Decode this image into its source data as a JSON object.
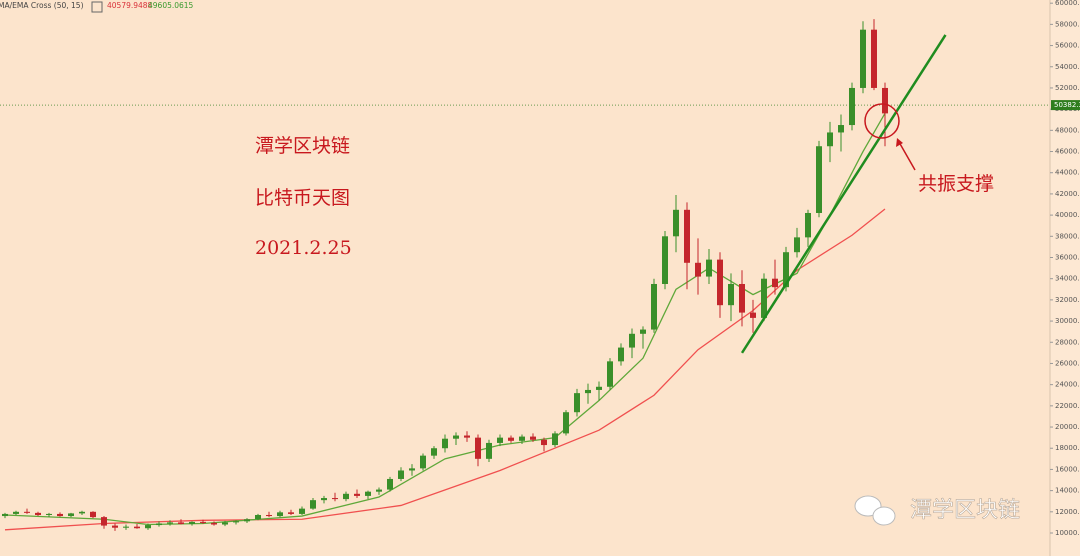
{
  "chart_data": {
    "type": "candlestick",
    "indicator": "MA/EMA Cross (50, 15)",
    "ylim": [
      7830,
      60300
    ],
    "yticks": [
      {
        "value": 10000,
        "label": "10000.00"
      },
      {
        "value": 12000,
        "label": "12000.00"
      },
      {
        "value": 14000,
        "label": "14000.00"
      },
      {
        "value": 16000,
        "label": "16000.00"
      },
      {
        "value": 18000,
        "label": "18000.00"
      },
      {
        "value": 20000,
        "label": "20000.00"
      },
      {
        "value": 22000,
        "label": "22000.00"
      },
      {
        "value": 24000,
        "label": "24000.00"
      },
      {
        "value": 26000,
        "label": "26000.00"
      },
      {
        "value": 28000,
        "label": "28000.00"
      },
      {
        "value": 30000,
        "label": "30000.00"
      },
      {
        "value": 32000,
        "label": "32000.00"
      },
      {
        "value": 34000,
        "label": "34000.00"
      },
      {
        "value": 36000,
        "label": "36000.00"
      },
      {
        "value": 38000,
        "label": "38000.00"
      },
      {
        "value": 40000,
        "label": "40000.00"
      },
      {
        "value": 42000,
        "label": "42000.00"
      },
      {
        "value": 44000,
        "label": "44000.00"
      },
      {
        "value": 46000,
        "label": "46000.00"
      },
      {
        "value": 48000,
        "label": "48000.00"
      },
      {
        "value": 50000,
        "label": "50000.00"
      },
      {
        "value": 52000,
        "label": "52000.00"
      },
      {
        "value": 54000,
        "label": "54000.00"
      },
      {
        "value": 56000,
        "label": "56000.00"
      },
      {
        "value": 58000,
        "label": "58000.00"
      },
      {
        "value": 60000,
        "label": "60000.00"
      }
    ],
    "up_color": "#3a8f2a",
    "down_color": "#c4262c",
    "candles": {
      "open": [
        11600,
        11800,
        12000,
        11900,
        11700,
        11800,
        11600,
        11850,
        12000,
        11500,
        10700,
        10500,
        10600,
        10450,
        10750,
        10900,
        11000,
        10850,
        11050,
        10950,
        10800,
        11000,
        11100,
        11300,
        11700,
        11600,
        11950,
        11800,
        12300,
        13100,
        13300,
        13200,
        13700,
        13500,
        13900,
        14100,
        15100,
        15900,
        16100,
        17300,
        18000,
        18900,
        19200,
        19000,
        17000,
        18500,
        19000,
        18700,
        19100,
        18800,
        18300,
        19400,
        21400,
        23200,
        23500,
        23800,
        26200,
        27500,
        28800,
        29200,
        33500,
        38000,
        40500,
        35500,
        34200,
        35800,
        31500,
        33500,
        30800,
        30300,
        34000,
        33200,
        36500,
        37900,
        40200,
        46500,
        47800,
        48500,
        52000,
        57500,
        52000
      ],
      "high": [
        11900,
        12100,
        12300,
        12000,
        11900,
        11950,
        11900,
        12100,
        12050,
        11600,
        10900,
        10800,
        10850,
        10900,
        11100,
        11200,
        11300,
        11100,
        11250,
        11100,
        11150,
        11200,
        11400,
        11800,
        12000,
        12100,
        12200,
        12500,
        13300,
        13500,
        13800,
        13900,
        14100,
        14000,
        14300,
        15300,
        16200,
        16500,
        17500,
        18200,
        19300,
        19500,
        19600,
        19300,
        18800,
        19300,
        19200,
        19300,
        19400,
        19000,
        19600,
        21600,
        23600,
        24100,
        24300,
        26500,
        27900,
        29300,
        29500,
        34000,
        38500,
        41900,
        41200,
        37800,
        36800,
        36500,
        34500,
        34800,
        32000,
        34500,
        35800,
        37000,
        38800,
        40500,
        47000,
        48800,
        49500,
        52500,
        58300,
        58500,
        52500
      ],
      "low": [
        11400,
        11700,
        11800,
        11600,
        11500,
        11550,
        11500,
        11700,
        11400,
        10400,
        10200,
        10300,
        10400,
        10300,
        10600,
        10700,
        10800,
        10700,
        10850,
        10700,
        10650,
        10800,
        10950,
        11200,
        11500,
        11500,
        11700,
        11700,
        12200,
        12800,
        13000,
        13000,
        13300,
        13200,
        13600,
        13900,
        14900,
        15400,
        15900,
        17000,
        17600,
        18300,
        18600,
        16300,
        16700,
        18200,
        18500,
        18400,
        18600,
        17700,
        18100,
        19200,
        21000,
        22200,
        22500,
        23500,
        25800,
        26500,
        27400,
        28900,
        33000,
        36500,
        33000,
        32500,
        33500,
        30300,
        30000,
        29500,
        28900,
        30000,
        32500,
        32800,
        36000,
        37000,
        39800,
        45000,
        46000,
        48000,
        51500,
        51800,
        46500
      ],
      "close": [
        11800,
        12000,
        11900,
        11700,
        11800,
        11600,
        11850,
        12000,
        11500,
        10700,
        10500,
        10600,
        10450,
        10750,
        10900,
        11000,
        10850,
        11050,
        10950,
        10800,
        11000,
        11100,
        11300,
        11700,
        11600,
        11950,
        11800,
        12300,
        13100,
        13300,
        13200,
        13700,
        13500,
        13900,
        14100,
        15100,
        15900,
        16100,
        17300,
        18000,
        18900,
        19200,
        19000,
        17000,
        18500,
        19000,
        18700,
        19100,
        18800,
        18300,
        19400,
        21400,
        23200,
        23500,
        23800,
        26200,
        27500,
        28800,
        29200,
        33500,
        38000,
        40500,
        35500,
        34200,
        35800,
        31500,
        33500,
        30800,
        30300,
        34000,
        33200,
        36500,
        37900,
        40200,
        46500,
        47800,
        48500,
        52000,
        57500,
        52000,
        49600
      ]
    },
    "lines": [
      {
        "color": "#f0504f",
        "last": 40579.9488,
        "x": [
          0,
          9,
          18,
          27,
          36,
          45,
          54,
          59,
          63,
          68,
          72,
          77,
          80
        ],
        "values": [
          10300,
          10900,
          11200,
          11300,
          12600,
          15900,
          19700,
          23000,
          27300,
          31000,
          34800,
          38100,
          40580
        ]
      },
      {
        "color": "#5fa83a",
        "last": 49605.0615,
        "x": [
          0,
          9,
          13,
          18,
          27,
          34,
          40,
          45,
          50,
          54,
          58,
          61,
          64,
          68,
          72,
          75,
          78,
          80
        ],
        "values": [
          11700,
          11300,
          10800,
          10900,
          11600,
          13400,
          17000,
          18300,
          19000,
          22500,
          26500,
          33000,
          35000,
          32500,
          34500,
          40000,
          46000,
          49605
        ]
      }
    ],
    "trendline": {
      "color": "#1f8c1f",
      "x": [
        67,
        85.5
      ],
      "values": [
        27000,
        57000
      ]
    },
    "last_price": {
      "value": 50382.37,
      "label": "50382.37"
    },
    "annotations": [
      "潭学区块链",
      "比特币天图",
      "2021.2.25"
    ],
    "callout": "共振支撑",
    "watermark": "潭学区块链"
  }
}
